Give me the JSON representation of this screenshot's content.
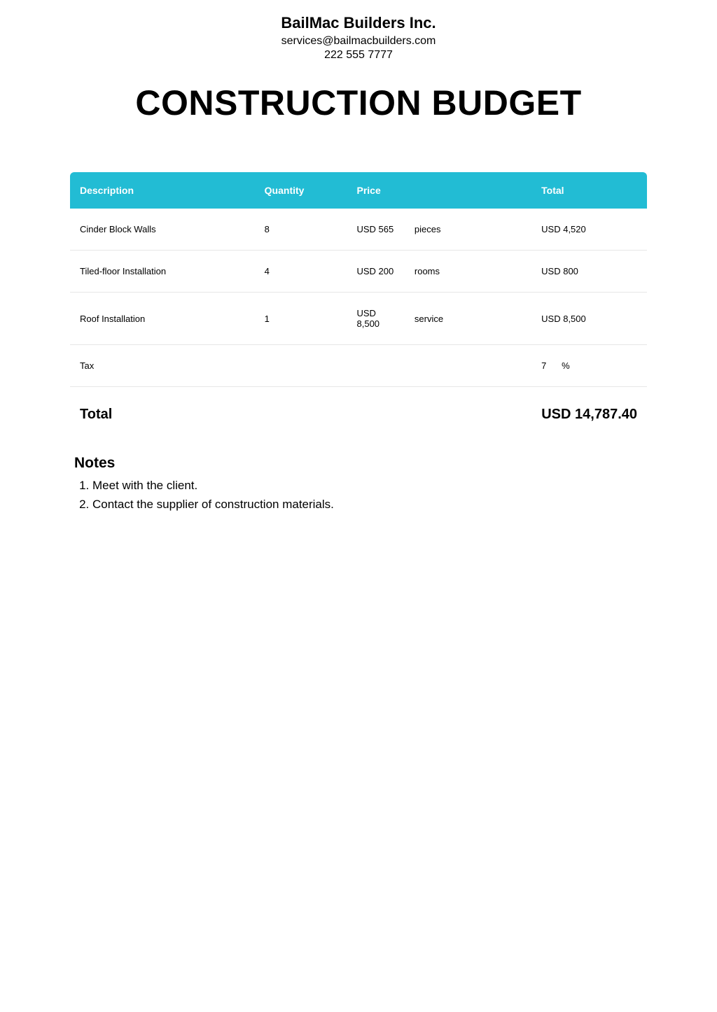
{
  "header": {
    "company_name": "BailMac Builders Inc.",
    "email": "services@bailmacbuilders.com",
    "phone": "222 555 7777"
  },
  "title": "CONSTRUCTION BUDGET",
  "table": {
    "columns": {
      "description": "Description",
      "quantity": "Quantity",
      "price": "Price",
      "total": "Total"
    },
    "header_bg": "#22bcd4",
    "header_text_color": "#ffffff",
    "row_border_color": "#e6e6e6",
    "rows": [
      {
        "description": "Cinder Block Walls",
        "quantity": "8",
        "price": "USD 565",
        "unit": "pieces",
        "total": "USD 4,520"
      },
      {
        "description": "Tiled-floor Installation",
        "quantity": "4",
        "price": "USD 200",
        "unit": "rooms",
        "total": "USD 800"
      },
      {
        "description": "Roof Installation",
        "quantity": "1",
        "price": "USD 8,500",
        "unit": "service",
        "total": "USD 8,500"
      }
    ],
    "tax_row": {
      "label": "Tax",
      "value": "7",
      "symbol": "%"
    }
  },
  "totals": {
    "label": "Total",
    "amount": "USD 14,787.40"
  },
  "notes": {
    "heading": "Notes",
    "items": [
      "Meet with the client.",
      "Contact the supplier of construction materials."
    ]
  },
  "colors": {
    "background": "#ffffff",
    "text": "#000000"
  }
}
